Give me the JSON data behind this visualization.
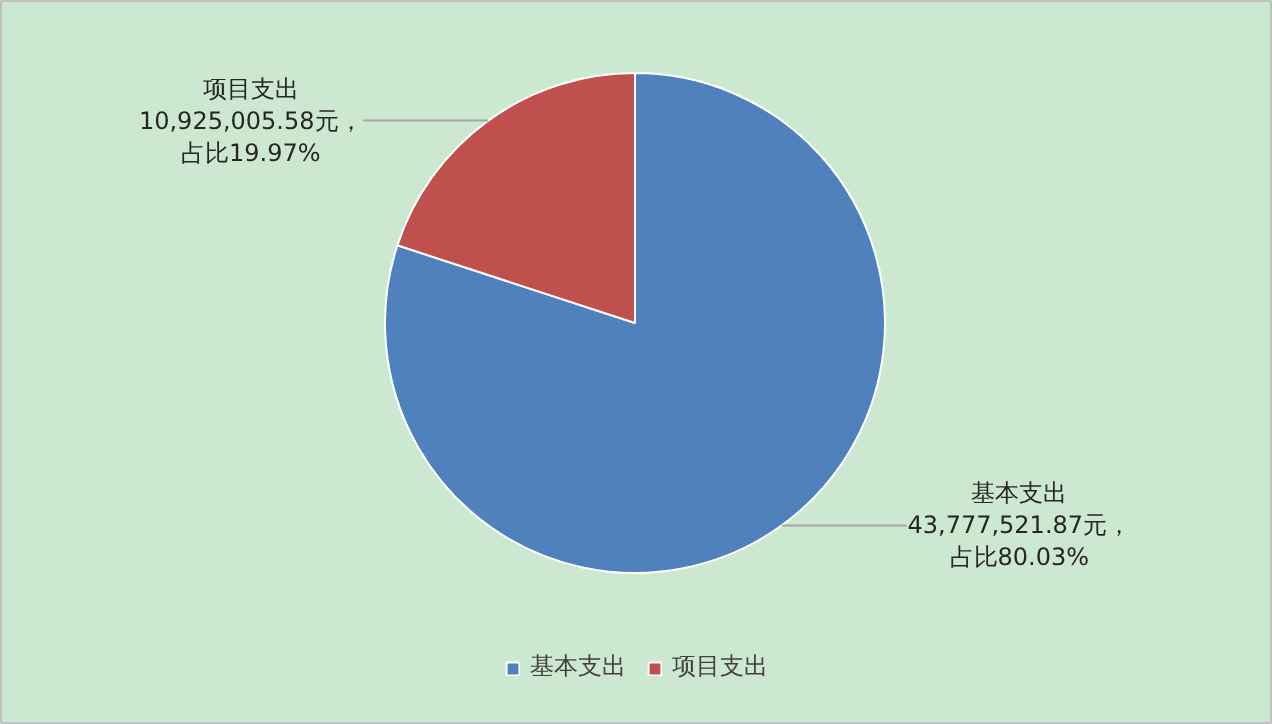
{
  "chart_data": {
    "type": "pie",
    "categories": [
      "基本支出",
      "项目支出"
    ],
    "values": [
      43777521.87,
      10925005.58
    ],
    "colors": [
      "#4f81bd",
      "#c0504d"
    ],
    "value_labels": [
      "43,777,521.87元，占比80.03%",
      "10,925,005.58元，占比19.97%"
    ],
    "legend": "bottom"
  }
}
